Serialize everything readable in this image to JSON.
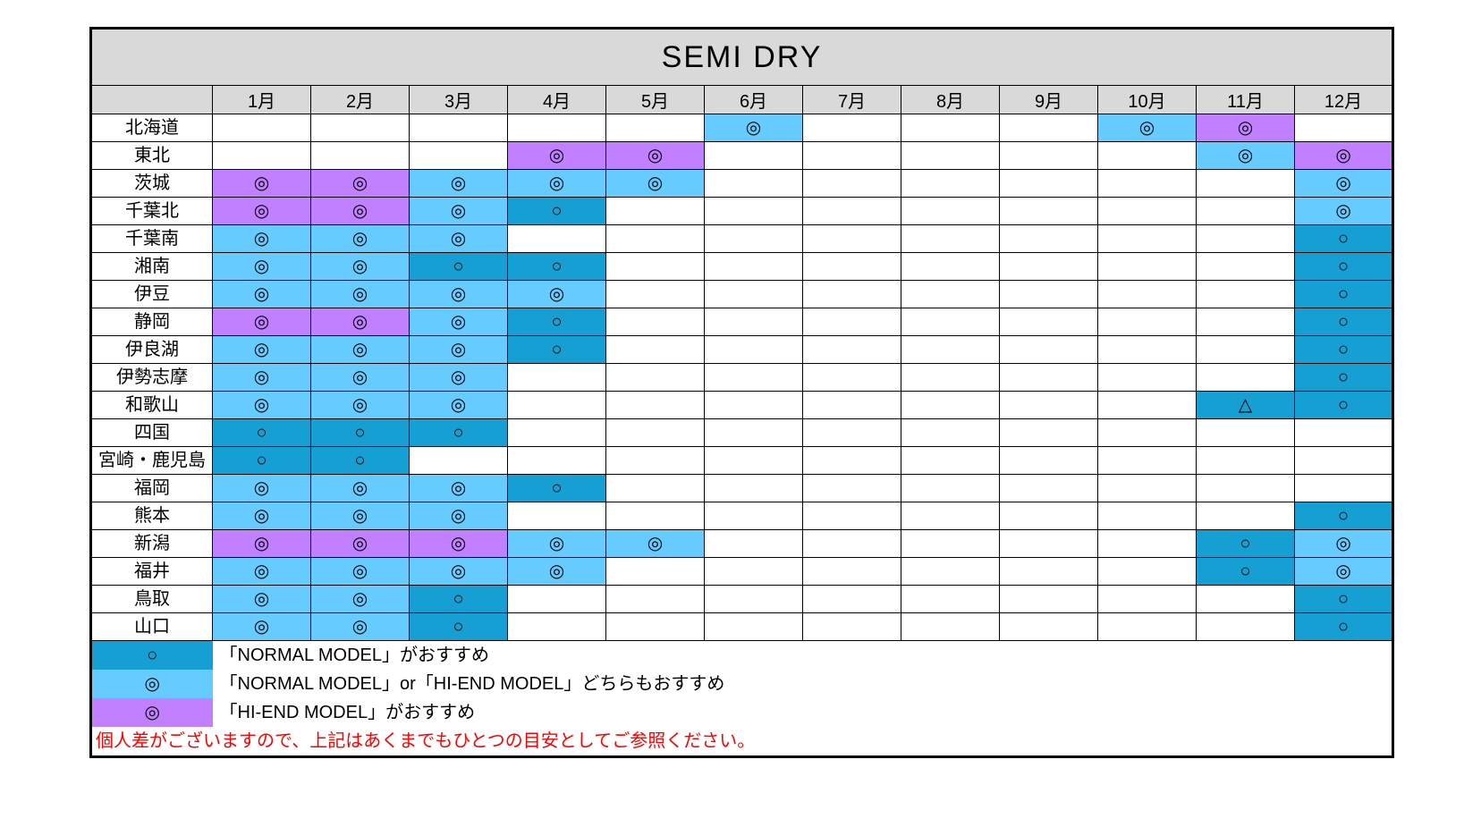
{
  "title": "SEMI DRY",
  "colors": {
    "normal": "#159fd2",
    "both": "#66ccff",
    "hiend": "#c080ff",
    "header_bg": "#d9d9d9"
  },
  "symbols": {
    "double_circle": "◎",
    "circle": "○",
    "triangle": "△"
  },
  "months": [
    "1月",
    "2月",
    "3月",
    "4月",
    "5月",
    "6月",
    "7月",
    "8月",
    "9月",
    "10月",
    "11月",
    "12月"
  ],
  "regions": [
    "北海道",
    "東北",
    "茨城",
    "千葉北",
    "千葉南",
    "湘南",
    "伊豆",
    "静岡",
    "伊良湖",
    "伊勢志摩",
    "和歌山",
    "四国",
    "宮崎・鹿児島",
    "福岡",
    "熊本",
    "新潟",
    "福井",
    "鳥取",
    "山口"
  ],
  "grid": [
    [
      null,
      null,
      null,
      null,
      null,
      {
        "c": "both",
        "s": "double_circle"
      },
      null,
      null,
      null,
      {
        "c": "both",
        "s": "double_circle"
      },
      {
        "c": "hiend",
        "s": "double_circle"
      },
      null
    ],
    [
      null,
      null,
      null,
      {
        "c": "hiend",
        "s": "double_circle"
      },
      {
        "c": "hiend",
        "s": "double_circle"
      },
      null,
      null,
      null,
      null,
      null,
      {
        "c": "both",
        "s": "double_circle"
      },
      {
        "c": "hiend",
        "s": "double_circle"
      }
    ],
    [
      {
        "c": "hiend",
        "s": "double_circle"
      },
      {
        "c": "hiend",
        "s": "double_circle"
      },
      {
        "c": "both",
        "s": "double_circle"
      },
      {
        "c": "both",
        "s": "double_circle"
      },
      {
        "c": "both",
        "s": "double_circle"
      },
      null,
      null,
      null,
      null,
      null,
      null,
      {
        "c": "both",
        "s": "double_circle"
      }
    ],
    [
      {
        "c": "hiend",
        "s": "double_circle"
      },
      {
        "c": "hiend",
        "s": "double_circle"
      },
      {
        "c": "both",
        "s": "double_circle"
      },
      {
        "c": "normal",
        "s": "circle"
      },
      null,
      null,
      null,
      null,
      null,
      null,
      null,
      {
        "c": "both",
        "s": "double_circle"
      }
    ],
    [
      {
        "c": "both",
        "s": "double_circle"
      },
      {
        "c": "both",
        "s": "double_circle"
      },
      {
        "c": "both",
        "s": "double_circle"
      },
      null,
      null,
      null,
      null,
      null,
      null,
      null,
      null,
      {
        "c": "normal",
        "s": "circle"
      }
    ],
    [
      {
        "c": "both",
        "s": "double_circle"
      },
      {
        "c": "both",
        "s": "double_circle"
      },
      {
        "c": "normal",
        "s": "circle"
      },
      {
        "c": "normal",
        "s": "circle"
      },
      null,
      null,
      null,
      null,
      null,
      null,
      null,
      {
        "c": "normal",
        "s": "circle"
      }
    ],
    [
      {
        "c": "both",
        "s": "double_circle"
      },
      {
        "c": "both",
        "s": "double_circle"
      },
      {
        "c": "both",
        "s": "double_circle"
      },
      {
        "c": "both",
        "s": "double_circle"
      },
      null,
      null,
      null,
      null,
      null,
      null,
      null,
      {
        "c": "normal",
        "s": "circle"
      }
    ],
    [
      {
        "c": "hiend",
        "s": "double_circle"
      },
      {
        "c": "hiend",
        "s": "double_circle"
      },
      {
        "c": "both",
        "s": "double_circle"
      },
      {
        "c": "normal",
        "s": "circle"
      },
      null,
      null,
      null,
      null,
      null,
      null,
      null,
      {
        "c": "normal",
        "s": "circle"
      }
    ],
    [
      {
        "c": "both",
        "s": "double_circle"
      },
      {
        "c": "both",
        "s": "double_circle"
      },
      {
        "c": "both",
        "s": "double_circle"
      },
      {
        "c": "normal",
        "s": "circle"
      },
      null,
      null,
      null,
      null,
      null,
      null,
      null,
      {
        "c": "normal",
        "s": "circle"
      }
    ],
    [
      {
        "c": "both",
        "s": "double_circle"
      },
      {
        "c": "both",
        "s": "double_circle"
      },
      {
        "c": "both",
        "s": "double_circle"
      },
      null,
      null,
      null,
      null,
      null,
      null,
      null,
      null,
      {
        "c": "normal",
        "s": "circle"
      }
    ],
    [
      {
        "c": "both",
        "s": "double_circle"
      },
      {
        "c": "both",
        "s": "double_circle"
      },
      {
        "c": "both",
        "s": "double_circle"
      },
      null,
      null,
      null,
      null,
      null,
      null,
      null,
      {
        "c": "normal",
        "s": "triangle"
      },
      {
        "c": "normal",
        "s": "circle"
      }
    ],
    [
      {
        "c": "normal",
        "s": "circle"
      },
      {
        "c": "normal",
        "s": "circle"
      },
      {
        "c": "normal",
        "s": "circle"
      },
      null,
      null,
      null,
      null,
      null,
      null,
      null,
      null,
      null
    ],
    [
      {
        "c": "normal",
        "s": "circle"
      },
      {
        "c": "normal",
        "s": "circle"
      },
      null,
      null,
      null,
      null,
      null,
      null,
      null,
      null,
      null,
      null
    ],
    [
      {
        "c": "both",
        "s": "double_circle"
      },
      {
        "c": "both",
        "s": "double_circle"
      },
      {
        "c": "both",
        "s": "double_circle"
      },
      {
        "c": "normal",
        "s": "circle"
      },
      null,
      null,
      null,
      null,
      null,
      null,
      null,
      null
    ],
    [
      {
        "c": "both",
        "s": "double_circle"
      },
      {
        "c": "both",
        "s": "double_circle"
      },
      {
        "c": "both",
        "s": "double_circle"
      },
      null,
      null,
      null,
      null,
      null,
      null,
      null,
      null,
      {
        "c": "normal",
        "s": "circle"
      }
    ],
    [
      {
        "c": "hiend",
        "s": "double_circle"
      },
      {
        "c": "hiend",
        "s": "double_circle"
      },
      {
        "c": "hiend",
        "s": "double_circle"
      },
      {
        "c": "both",
        "s": "double_circle"
      },
      {
        "c": "both",
        "s": "double_circle"
      },
      null,
      null,
      null,
      null,
      null,
      {
        "c": "normal",
        "s": "circle"
      },
      {
        "c": "both",
        "s": "double_circle"
      }
    ],
    [
      {
        "c": "both",
        "s": "double_circle"
      },
      {
        "c": "both",
        "s": "double_circle"
      },
      {
        "c": "both",
        "s": "double_circle"
      },
      {
        "c": "both",
        "s": "double_circle"
      },
      null,
      null,
      null,
      null,
      null,
      null,
      {
        "c": "normal",
        "s": "circle"
      },
      {
        "c": "both",
        "s": "double_circle"
      }
    ],
    [
      {
        "c": "both",
        "s": "double_circle"
      },
      {
        "c": "both",
        "s": "double_circle"
      },
      {
        "c": "normal",
        "s": "circle"
      },
      null,
      null,
      null,
      null,
      null,
      null,
      null,
      null,
      {
        "c": "normal",
        "s": "circle"
      }
    ],
    [
      {
        "c": "both",
        "s": "double_circle"
      },
      {
        "c": "both",
        "s": "double_circle"
      },
      {
        "c": "normal",
        "s": "circle"
      },
      null,
      null,
      null,
      null,
      null,
      null,
      null,
      null,
      {
        "c": "normal",
        "s": "circle"
      }
    ]
  ],
  "legend": [
    {
      "color": "normal",
      "symbol": "circle",
      "text": "「NORMAL MODEL」がおすすめ"
    },
    {
      "color": "both",
      "symbol": "double_circle",
      "text": "「NORMAL MODEL」or「HI-END MODEL」どちらもおすすめ"
    },
    {
      "color": "hiend",
      "symbol": "double_circle",
      "text": "「HI-END MODEL」がおすすめ"
    }
  ],
  "disclaimer": "個人差がございますので、上記はあくまでもひとつの目安としてご参照ください。"
}
